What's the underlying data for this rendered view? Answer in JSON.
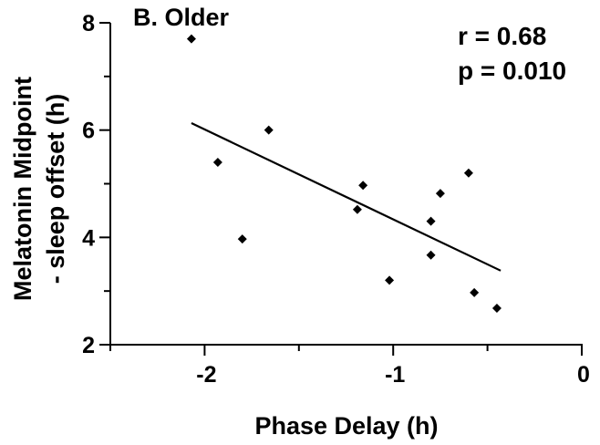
{
  "chart_data": {
    "type": "scatter",
    "title": "B. Older",
    "xlabel": "Phase Delay (h)",
    "ylabel_lines": [
      "Melatonin Midpoint",
      "- sleep offset (h)"
    ],
    "xlim": [
      -2.5,
      0
    ],
    "ylim": [
      2,
      8
    ],
    "x_ticks": [
      -2,
      -1,
      0
    ],
    "x_tick_labels": [
      "-2",
      "-1",
      "0"
    ],
    "y_ticks": [
      2,
      4,
      6,
      8
    ],
    "y_tick_labels": [
      "2",
      "4",
      "6",
      "8"
    ],
    "grid": false,
    "points": [
      {
        "x": -2.07,
        "y": 7.7
      },
      {
        "x": -1.93,
        "y": 5.4
      },
      {
        "x": -1.8,
        "y": 3.97
      },
      {
        "x": -1.66,
        "y": 6.0
      },
      {
        "x": -1.19,
        "y": 4.52
      },
      {
        "x": -1.16,
        "y": 4.97
      },
      {
        "x": -1.02,
        "y": 3.2
      },
      {
        "x": -0.8,
        "y": 4.3
      },
      {
        "x": -0.8,
        "y": 3.67
      },
      {
        "x": -0.75,
        "y": 4.82
      },
      {
        "x": -0.6,
        "y": 5.2
      },
      {
        "x": -0.57,
        "y": 2.97
      },
      {
        "x": -0.45,
        "y": 2.68
      }
    ],
    "regression": {
      "x": [
        -2.07,
        -0.43
      ],
      "y": [
        6.13,
        3.38
      ]
    },
    "annotations": [
      "r = 0.68",
      "p = 0.010"
    ]
  }
}
